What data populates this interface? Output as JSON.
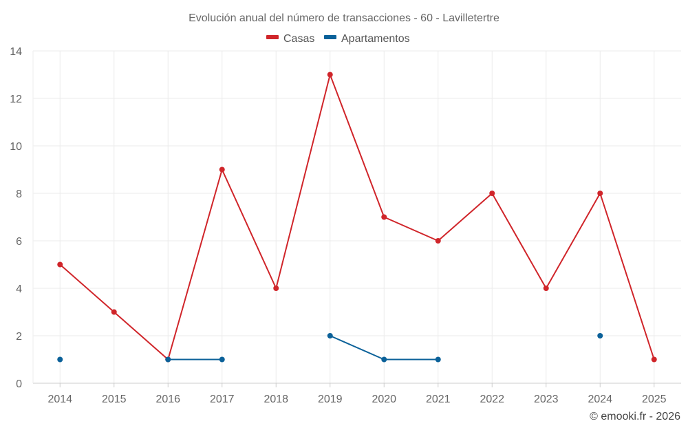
{
  "chart_data": {
    "type": "line",
    "title": "Evolución anual del número de transacciones - 60 - Lavilletertre",
    "categories": [
      "2014",
      "2015",
      "2016",
      "2017",
      "2018",
      "2019",
      "2020",
      "2021",
      "2022",
      "2023",
      "2024",
      "2025"
    ],
    "ylim": [
      0,
      14
    ],
    "yticks": [
      0,
      2,
      4,
      6,
      8,
      10,
      12,
      14
    ],
    "grid": true,
    "legend_position": "top-center",
    "series": [
      {
        "name": "Casas",
        "color": "#d0252a",
        "values": [
          5,
          3,
          1,
          9,
          4,
          13,
          7,
          6,
          8,
          4,
          8,
          1
        ]
      },
      {
        "name": "Apartamentos",
        "color": "#0b6199",
        "values": [
          1,
          null,
          1,
          1,
          null,
          2,
          1,
          1,
          null,
          null,
          2,
          null
        ]
      }
    ],
    "credit": "© emooki.fr - 2026"
  }
}
